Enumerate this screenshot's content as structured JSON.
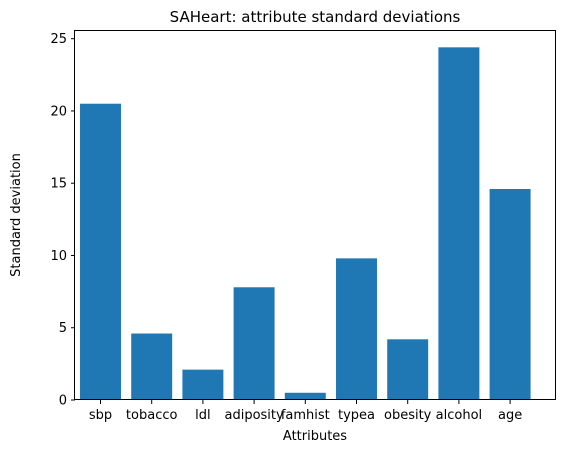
{
  "chart_data": {
    "type": "bar",
    "title": "SAHeart: attribute standard deviations",
    "xlabel": "Attributes",
    "ylabel": "Standard deviation",
    "categories": [
      "sbp",
      "tobacco",
      "ldl",
      "adiposity",
      "famhist",
      "typea",
      "obesity",
      "alcohol",
      "age"
    ],
    "values": [
      20.5,
      4.6,
      2.1,
      7.8,
      0.5,
      9.8,
      4.2,
      24.4,
      14.6
    ],
    "ylim": [
      0,
      25.6
    ],
    "yticks": [
      0,
      5,
      10,
      15,
      20,
      25
    ],
    "grid": false,
    "bar_color": "#1f77b4"
  }
}
